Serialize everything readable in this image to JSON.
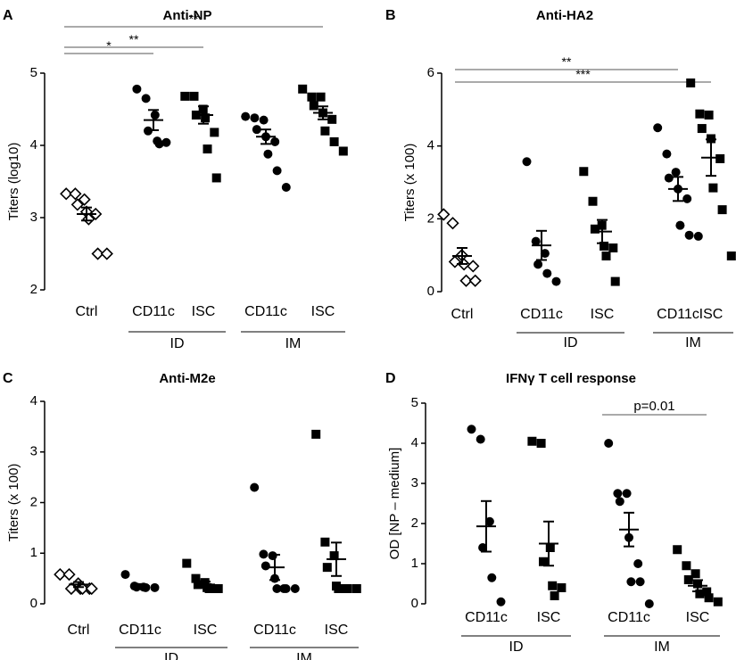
{
  "chart_data": [
    {
      "panel_letter": "A",
      "type": "scatter",
      "title": "Anti-NP",
      "ylabel": "Titers (log10)",
      "ylim": [
        2,
        5
      ],
      "yticks": [
        2,
        3,
        4,
        5
      ],
      "groups": [
        {
          "label": "Ctrl",
          "marker": "open-diamond",
          "points": [
            3.33,
            3.33,
            3.25,
            3.18,
            3.08,
            3.05,
            2.98,
            2.5,
            2.5
          ],
          "mean": 3.05,
          "sem": 0.09
        },
        {
          "label": "CD11c",
          "marker": "filled-circle",
          "points": [
            4.78,
            4.65,
            4.42,
            4.2,
            4.06,
            4.04,
            4.02
          ],
          "mean": 4.35,
          "sem": 0.14
        },
        {
          "label": "ISC",
          "marker": "filled-square",
          "points": [
            4.68,
            4.68,
            4.5,
            4.42,
            4.38,
            4.18,
            3.95,
            3.55
          ],
          "mean": 4.42,
          "sem": 0.12
        },
        {
          "label": "CD11c",
          "marker": "filled-circle",
          "points": [
            4.4,
            4.38,
            4.35,
            4.22,
            4.12,
            4.05,
            3.88,
            3.65,
            3.42
          ],
          "mean": 4.12,
          "sem": 0.1
        },
        {
          "label": "ISC",
          "marker": "filled-square",
          "points": [
            4.78,
            4.67,
            4.67,
            4.55,
            4.45,
            4.36,
            4.2,
            4.05,
            3.92
          ],
          "mean": 4.45,
          "sem": 0.09
        }
      ],
      "group_labels": [
        {
          "text": "ID",
          "from": 1,
          "to": 2
        },
        {
          "text": "IM",
          "from": 3,
          "to": 4
        }
      ],
      "significance": [
        {
          "from": 0,
          "to": 1,
          "label": "*"
        },
        {
          "from": 0,
          "to": 2,
          "label": "**"
        },
        {
          "from": 0,
          "to": 4,
          "label": "**"
        }
      ]
    },
    {
      "panel_letter": "B",
      "type": "scatter",
      "title": "Anti-HA2",
      "ylabel": "Titers (x 100)",
      "ylim": [
        0,
        6
      ],
      "yticks": [
        0,
        2,
        4,
        6
      ],
      "groups": [
        {
          "label": "Ctrl",
          "marker": "open-diamond",
          "points": [
            2.12,
            1.88,
            1.0,
            0.82,
            0.75,
            0.7,
            0.3,
            0.3
          ],
          "mean": 0.98,
          "sem": 0.22
        },
        {
          "label": "CD11c",
          "marker": "filled-circle",
          "points": [
            3.57,
            1.38,
            1.05,
            0.75,
            0.5,
            0.28
          ],
          "mean": 1.27,
          "sem": 0.4
        },
        {
          "label": "ISC",
          "marker": "filled-square",
          "points": [
            3.3,
            2.48,
            1.82,
            1.72,
            1.25,
            1.2,
            0.98,
            0.28
          ],
          "mean": 1.65,
          "sem": 0.32
        },
        {
          "label": "CD11c",
          "marker": "filled-circle",
          "points": [
            4.5,
            3.78,
            3.28,
            3.12,
            2.82,
            2.55,
            1.82,
            1.55,
            1.52
          ],
          "mean": 2.82,
          "sem": 0.33
        },
        {
          "label": "ISC",
          "marker": "filled-square",
          "points": [
            5.73,
            4.88,
            4.85,
            4.48,
            4.2,
            3.65,
            2.85,
            2.25,
            0.98
          ],
          "mean": 3.68,
          "sem": 0.5
        }
      ],
      "group_labels": [
        {
          "text": "ID",
          "from": 1,
          "to": 2
        },
        {
          "text": "IM",
          "from": 3,
          "to": 4
        }
      ],
      "significance": [
        {
          "from": 0,
          "to": 3,
          "label": "**"
        },
        {
          "from": 0,
          "to": 4,
          "label": "***"
        }
      ]
    },
    {
      "panel_letter": "C",
      "type": "scatter",
      "title": "Anti-M2e",
      "ylabel": "Titers (x 100)",
      "ylim": [
        0,
        4
      ],
      "yticks": [
        0,
        1,
        2,
        3,
        4
      ],
      "groups": [
        {
          "label": "Ctrl",
          "marker": "open-diamond",
          "points": [
            0.58,
            0.58,
            0.4,
            0.3,
            0.3,
            0.3,
            0.3,
            0.3
          ],
          "mean": 0.38,
          "sem": 0.05
        },
        {
          "label": "CD11c",
          "marker": "filled-circle",
          "points": [
            0.58,
            0.35,
            0.33,
            0.33,
            0.32,
            0.32
          ],
          "mean": 0.35,
          "sem": 0.04
        },
        {
          "label": "ISC",
          "marker": "filled-square",
          "points": [
            0.8,
            0.5,
            0.42,
            0.38,
            0.32,
            0.3,
            0.3,
            0.3
          ],
          "mean": 0.38,
          "sem": 0.06
        },
        {
          "label": "CD11c",
          "marker": "filled-circle",
          "points": [
            2.3,
            0.98,
            0.95,
            0.75,
            0.5,
            0.3,
            0.3,
            0.3,
            0.3
          ],
          "mean": 0.72,
          "sem": 0.25
        },
        {
          "label": "ISC",
          "marker": "filled-square",
          "points": [
            3.35,
            1.22,
            0.95,
            0.72,
            0.35,
            0.3,
            0.3,
            0.3,
            0.3
          ],
          "mean": 0.88,
          "sem": 0.33
        }
      ],
      "group_labels": [
        {
          "text": "ID",
          "from": 1,
          "to": 2
        },
        {
          "text": "IM",
          "from": 3,
          "to": 4
        }
      ],
      "significance": []
    },
    {
      "panel_letter": "D",
      "type": "scatter",
      "title": "IFNγ T cell response",
      "ylabel": "OD [NP – medium]",
      "ylim": [
        0,
        5
      ],
      "yticks": [
        0,
        1,
        2,
        3,
        4,
        5
      ],
      "groups": [
        {
          "label": "CD11c",
          "marker": "filled-circle",
          "points": [
            4.35,
            4.1,
            2.05,
            1.4,
            0.65,
            0.05
          ],
          "mean": 1.93,
          "sem": 0.63
        },
        {
          "label": "ISC",
          "marker": "filled-square",
          "points": [
            4.05,
            4.0,
            1.4,
            1.05,
            0.45,
            0.4,
            0.2
          ],
          "mean": 1.5,
          "sem": 0.55
        },
        {
          "label": "CD11c",
          "marker": "filled-circle",
          "points": [
            4.0,
            2.75,
            2.75,
            2.55,
            1.65,
            1.0,
            0.55,
            0.55,
            0.0
          ],
          "mean": 1.85,
          "sem": 0.42
        },
        {
          "label": "ISC",
          "marker": "filled-square",
          "points": [
            1.35,
            0.95,
            0.75,
            0.6,
            0.5,
            0.3,
            0.25,
            0.15,
            0.05
          ],
          "mean": 0.45,
          "sem": 0.14
        }
      ],
      "group_labels": [
        {
          "text": "ID",
          "from": 0,
          "to": 1
        },
        {
          "text": "IM",
          "from": 2,
          "to": 3
        }
      ],
      "significance": [
        {
          "from": 2,
          "to": 3,
          "label": "p=0.01"
        }
      ]
    }
  ]
}
